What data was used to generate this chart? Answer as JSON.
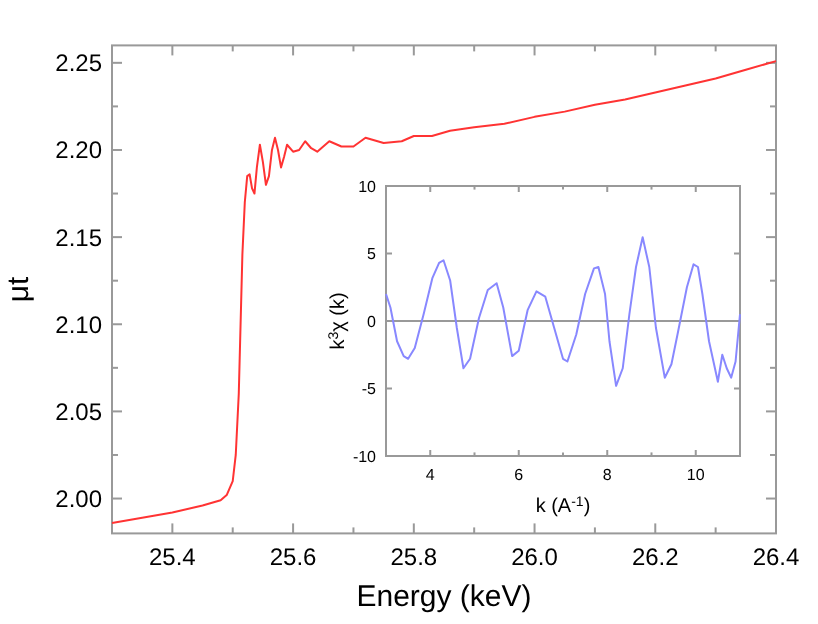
{
  "chart_data": [
    {
      "type": "line",
      "xlabel": "Energy (keV)",
      "ylabel": "μt",
      "xlim": [
        25.3,
        26.4
      ],
      "ylim": [
        1.98,
        2.26
      ],
      "xticks": [
        {
          "value": 25.4,
          "label": "25.4"
        },
        {
          "value": 25.5,
          "label": null
        },
        {
          "value": 25.6,
          "label": "25.6"
        },
        {
          "value": 25.7,
          "label": null
        },
        {
          "value": 25.8,
          "label": "25.8"
        },
        {
          "value": 25.9,
          "label": null
        },
        {
          "value": 26.0,
          "label": "26.0"
        },
        {
          "value": 26.1,
          "label": null
        },
        {
          "value": 26.2,
          "label": "26.2"
        },
        {
          "value": 26.3,
          "label": null
        },
        {
          "value": 26.4,
          "label": "26.4"
        }
      ],
      "yticks": [
        {
          "value": 2.0,
          "label": "2.00"
        },
        {
          "value": 2.025,
          "label": null
        },
        {
          "value": 2.05,
          "label": "2.05"
        },
        {
          "value": 2.075,
          "label": null
        },
        {
          "value": 2.1,
          "label": "2.10"
        },
        {
          "value": 2.125,
          "label": null
        },
        {
          "value": 2.15,
          "label": "2.15"
        },
        {
          "value": 2.175,
          "label": null
        },
        {
          "value": 2.2,
          "label": "2.20"
        },
        {
          "value": 2.225,
          "label": null
        },
        {
          "value": 2.25,
          "label": "2.25"
        }
      ],
      "grid": false,
      "marker": "none",
      "line_style": "solid",
      "series": [
        {
          "color": "#ff3333",
          "x": [
            25.3,
            25.35,
            25.4,
            25.45,
            25.48,
            25.49,
            25.5,
            25.505,
            25.51,
            25.513,
            25.516,
            25.52,
            25.524,
            25.528,
            25.532,
            25.536,
            25.54,
            25.545,
            25.55,
            25.555,
            25.56,
            25.565,
            25.57,
            25.575,
            25.58,
            25.585,
            25.59,
            25.6,
            25.61,
            25.62,
            25.63,
            25.64,
            25.66,
            25.68,
            25.7,
            25.72,
            25.75,
            25.78,
            25.8,
            25.83,
            25.86,
            25.9,
            25.95,
            26.0,
            26.05,
            26.1,
            26.15,
            26.2,
            26.25,
            26.3,
            26.35,
            26.4
          ],
          "values": [
            1.986,
            1.989,
            1.992,
            1.996,
            1.999,
            2.002,
            2.01,
            2.025,
            2.06,
            2.1,
            2.14,
            2.17,
            2.185,
            2.186,
            2.178,
            2.175,
            2.19,
            2.203,
            2.193,
            2.18,
            2.185,
            2.2,
            2.207,
            2.2,
            2.19,
            2.196,
            2.203,
            2.199,
            2.2,
            2.205,
            2.201,
            2.199,
            2.205,
            2.202,
            2.202,
            2.207,
            2.204,
            2.205,
            2.208,
            2.208,
            2.211,
            2.213,
            2.215,
            2.219,
            2.222,
            2.226,
            2.229,
            2.233,
            2.237,
            2.241,
            2.246,
            2.251
          ]
        }
      ]
    },
    {
      "type": "line",
      "xlabel": "k (A$^{-1}$)",
      "ylabel": "k$^{3}$χ (k)",
      "xlim": [
        3,
        11
      ],
      "ylim": [
        -10,
        10
      ],
      "xticks": [
        {
          "value": 4,
          "label": "4"
        },
        {
          "value": 5,
          "label": null
        },
        {
          "value": 6,
          "label": "6"
        },
        {
          "value": 7,
          "label": null
        },
        {
          "value": 8,
          "label": "8"
        },
        {
          "value": 9,
          "label": null
        },
        {
          "value": 10,
          "label": "10"
        }
      ],
      "yticks": [
        -10,
        -5,
        0,
        5,
        10
      ],
      "grid": false,
      "marker": "none",
      "line_style": "solid",
      "ref_lines": [
        {
          "axis": "y",
          "value": 0,
          "label": null,
          "color": "#999999"
        }
      ],
      "series": [
        {
          "color": "#8888ff",
          "x": [
            3.0,
            3.1,
            3.25,
            3.4,
            3.5,
            3.65,
            3.85,
            4.05,
            4.2,
            4.3,
            4.45,
            4.6,
            4.75,
            4.9,
            5.1,
            5.3,
            5.5,
            5.65,
            5.85,
            6.0,
            6.2,
            6.4,
            6.6,
            6.8,
            7.0,
            7.1,
            7.3,
            7.5,
            7.7,
            7.8,
            7.95,
            8.05,
            8.2,
            8.35,
            8.5,
            8.65,
            8.8,
            8.95,
            9.1,
            9.3,
            9.45,
            9.6,
            9.8,
            9.95,
            10.05,
            10.15,
            10.3,
            10.4,
            10.5,
            10.6,
            10.7,
            10.8,
            10.9,
            11.0
          ],
          "values": [
            2.0,
            1.0,
            -1.5,
            -2.6,
            -2.8,
            -2.0,
            0.5,
            3.2,
            4.3,
            4.5,
            3.0,
            -0.5,
            -3.5,
            -2.8,
            0.2,
            2.3,
            2.8,
            1.0,
            -2.6,
            -2.2,
            0.8,
            2.2,
            1.8,
            -0.5,
            -2.8,
            -3.0,
            -1.0,
            2.0,
            3.9,
            4.0,
            2.0,
            -1.5,
            -4.8,
            -3.5,
            0.5,
            4.0,
            6.2,
            4.0,
            -0.5,
            -4.2,
            -3.2,
            -0.8,
            2.5,
            4.2,
            4.0,
            2.0,
            -1.5,
            -3.0,
            -4.5,
            -2.5,
            -3.5,
            -4.2,
            -3.0,
            0.5
          ]
        }
      ]
    }
  ]
}
